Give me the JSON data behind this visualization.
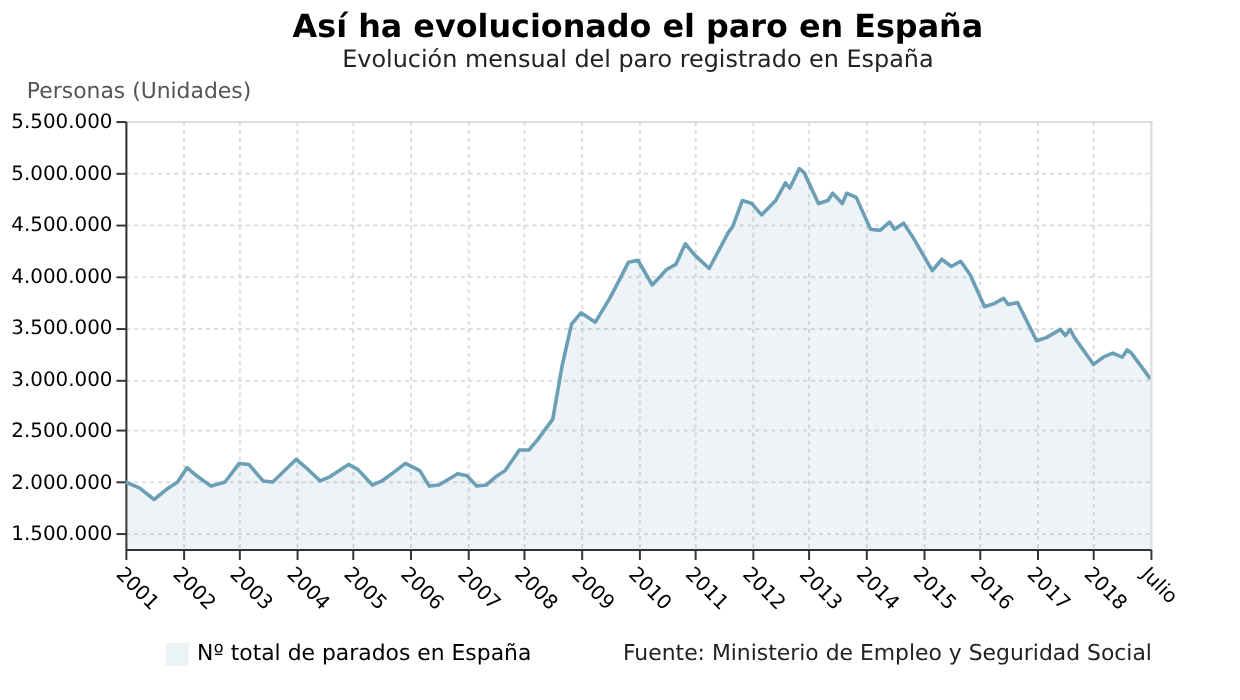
{
  "chart_data": {
    "type": "area",
    "title": "Así ha evolucionado el paro en España",
    "subtitle": "Evolución mensual del paro registrado en España",
    "ylabel": "Personas (Unidades)",
    "annotations": [
      "Fuente: Ministerio de Empleo y Seguridad Social"
    ],
    "x": [
      "2001-07",
      "2001-10",
      "2002-01",
      "2002-04",
      "2002-06",
      "2002-08",
      "2002-10",
      "2003-01",
      "2003-04",
      "2003-07",
      "2003-09",
      "2003-12",
      "2004-02",
      "2004-07",
      "2004-09",
      "2004-12",
      "2005-02",
      "2005-06",
      "2005-08",
      "2005-11",
      "2006-01",
      "2006-04",
      "2006-06",
      "2006-09",
      "2006-11",
      "2007-01",
      "2007-04",
      "2007-05",
      "2007-07",
      "2007-09",
      "2007-11",
      "2008-01",
      "2008-03",
      "2008-06",
      "2008-08",
      "2008-10",
      "2009-01",
      "2009-03",
      "2009-05",
      "2009-07",
      "2009-10",
      "2010-01",
      "2010-03",
      "2010-05",
      "2010-07",
      "2010-10",
      "2011-01",
      "2011-03",
      "2011-05",
      "2011-07",
      "2011-10",
      "2012-02",
      "2012-03",
      "2012-05",
      "2012-07",
      "2012-09",
      "2012-12",
      "2013-02",
      "2013-03",
      "2013-05",
      "2013-06",
      "2013-09",
      "2013-11",
      "2013-12",
      "2014-02",
      "2014-03",
      "2014-05",
      "2014-08",
      "2014-10",
      "2014-12",
      "2015-01",
      "2015-03",
      "2015-05",
      "2015-09",
      "2015-11",
      "2016-01",
      "2016-03",
      "2016-05",
      "2016-08",
      "2016-10",
      "2016-12",
      "2017-01",
      "2017-03",
      "2017-07",
      "2017-09",
      "2017-12",
      "2018-01",
      "2018-02",
      "2018-03",
      "2018-07",
      "2018-09",
      "2018-11",
      "2019-01",
      "2019-02",
      "2019-03",
      "2019-07"
    ],
    "series": [
      {
        "name": "Nº total de parados en España",
        "color": "#6a9fb5",
        "values": [
          2000000,
          1940000,
          1830000,
          1940000,
          2000000,
          2140000,
          2060000,
          1960000,
          2000000,
          2180000,
          2170000,
          2010000,
          2000000,
          2220000,
          2140000,
          2010000,
          2050000,
          2170000,
          2120000,
          1970000,
          2010000,
          2110000,
          2180000,
          2110000,
          1960000,
          1970000,
          2050000,
          2080000,
          2060000,
          1960000,
          1970000,
          2050000,
          2110000,
          2310000,
          2310000,
          2420000,
          2610000,
          3120000,
          3530000,
          3640000,
          3550000,
          3780000,
          3950000,
          4130000,
          4150000,
          3910000,
          4060000,
          4110000,
          4310000,
          4200000,
          4070000,
          4420000,
          4480000,
          4730000,
          4700000,
          4590000,
          4730000,
          4900000,
          4850000,
          5040000,
          5000000,
          4700000,
          4730000,
          4800000,
          4700000,
          4800000,
          4760000,
          4450000,
          4440000,
          4520000,
          4450000,
          4510000,
          4370000,
          4050000,
          4160000,
          4090000,
          4140000,
          4010000,
          3700000,
          3730000,
          3780000,
          3720000,
          3740000,
          3370000,
          3400000,
          3480000,
          3420000,
          3480000,
          3400000,
          3140000,
          3210000,
          3250000,
          3210000,
          3280000,
          3250000,
          3000000
        ]
      }
    ],
    "xlim": [
      "2001-07",
      "2019-07"
    ],
    "xticks": [
      {
        "value": "2001-07",
        "label": "2001"
      },
      {
        "value": "2002-07",
        "label": "2002"
      },
      {
        "value": "2003-07",
        "label": "2003"
      },
      {
        "value": "2004-07",
        "label": "2004"
      },
      {
        "value": "2005-07",
        "label": "2005"
      },
      {
        "value": "2006-07",
        "label": "2006"
      },
      {
        "value": "2007-07",
        "label": "2007"
      },
      {
        "value": "2008-07",
        "label": "2008"
      },
      {
        "value": "2009-07",
        "label": "2009"
      },
      {
        "value": "2010-07",
        "label": "2010"
      },
      {
        "value": "2011-07",
        "label": "2011"
      },
      {
        "value": "2012-07",
        "label": "2012"
      },
      {
        "value": "2013-07",
        "label": "2013"
      },
      {
        "value": "2014-07",
        "label": "2014"
      },
      {
        "value": "2015-07",
        "label": "2015"
      },
      {
        "value": "2016-07",
        "label": "2016"
      },
      {
        "value": "2017-07",
        "label": "2017"
      },
      {
        "value": "2018-07",
        "label": "2018"
      },
      {
        "value": "2019-07",
        "label": "Julio"
      }
    ],
    "ylim": [
      1350000,
      5500000
    ],
    "yticks": [
      {
        "value": 1500000,
        "label": "1.500.000"
      },
      {
        "value": 2000000,
        "label": "2.000.000"
      },
      {
        "value": 2500000,
        "label": "2.500.000"
      },
      {
        "value": 3000000,
        "label": "3.000.000"
      },
      {
        "value": 3500000,
        "label": "3.500.000"
      },
      {
        "value": 4000000,
        "label": "4.000.000"
      },
      {
        "value": 4500000,
        "label": "4.500.000"
      },
      {
        "value": 5000000,
        "label": "5.000.000"
      },
      {
        "value": 5500000,
        "label": "5.500.000"
      }
    ],
    "grid": true,
    "legend": "bottom"
  }
}
